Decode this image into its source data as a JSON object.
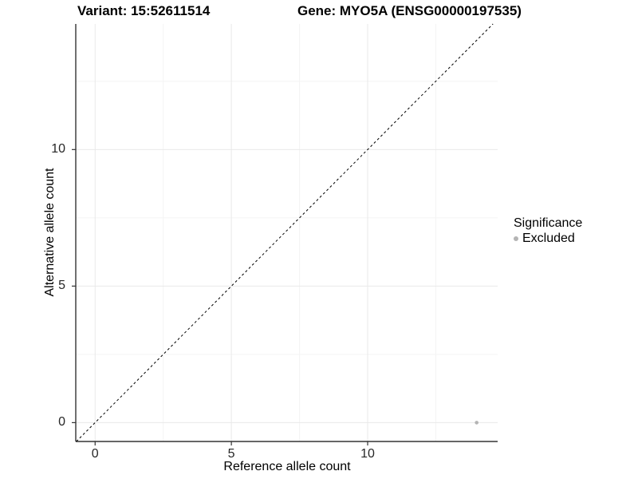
{
  "chart_data": {
    "type": "scatter",
    "title_left": "Variant: 15:52611514",
    "title_right": "Gene: MYO5A (ENSG00000197535)",
    "xlabel": "Reference allele count",
    "ylabel": "Alternative allele count",
    "xlim": [
      -0.71,
      14.77
    ],
    "ylim": [
      -0.69,
      14.6
    ],
    "x_ticks": [
      0,
      5,
      10
    ],
    "y_ticks": [
      0,
      5,
      10
    ],
    "x_minor_ticks": [
      2.5,
      7.5,
      12.5
    ],
    "y_minor_ticks": [
      2.5,
      7.5,
      12.5
    ],
    "grid": true,
    "points": [
      {
        "x": 14,
        "y": 0,
        "series": "Excluded"
      }
    ],
    "reference_line": {
      "type": "identity",
      "style": "dashed"
    },
    "legend": {
      "title": "Significance",
      "position": "right",
      "entries": [
        {
          "label": "Excluded",
          "color": "#b4b4b4"
        }
      ]
    },
    "colors": {
      "point": "#b4b4b4",
      "grid_major": "#e9e9e9",
      "grid_minor": "#f4f4f4",
      "axis": "#333333",
      "reference_line": "#000000",
      "background": "#ffffff"
    }
  }
}
